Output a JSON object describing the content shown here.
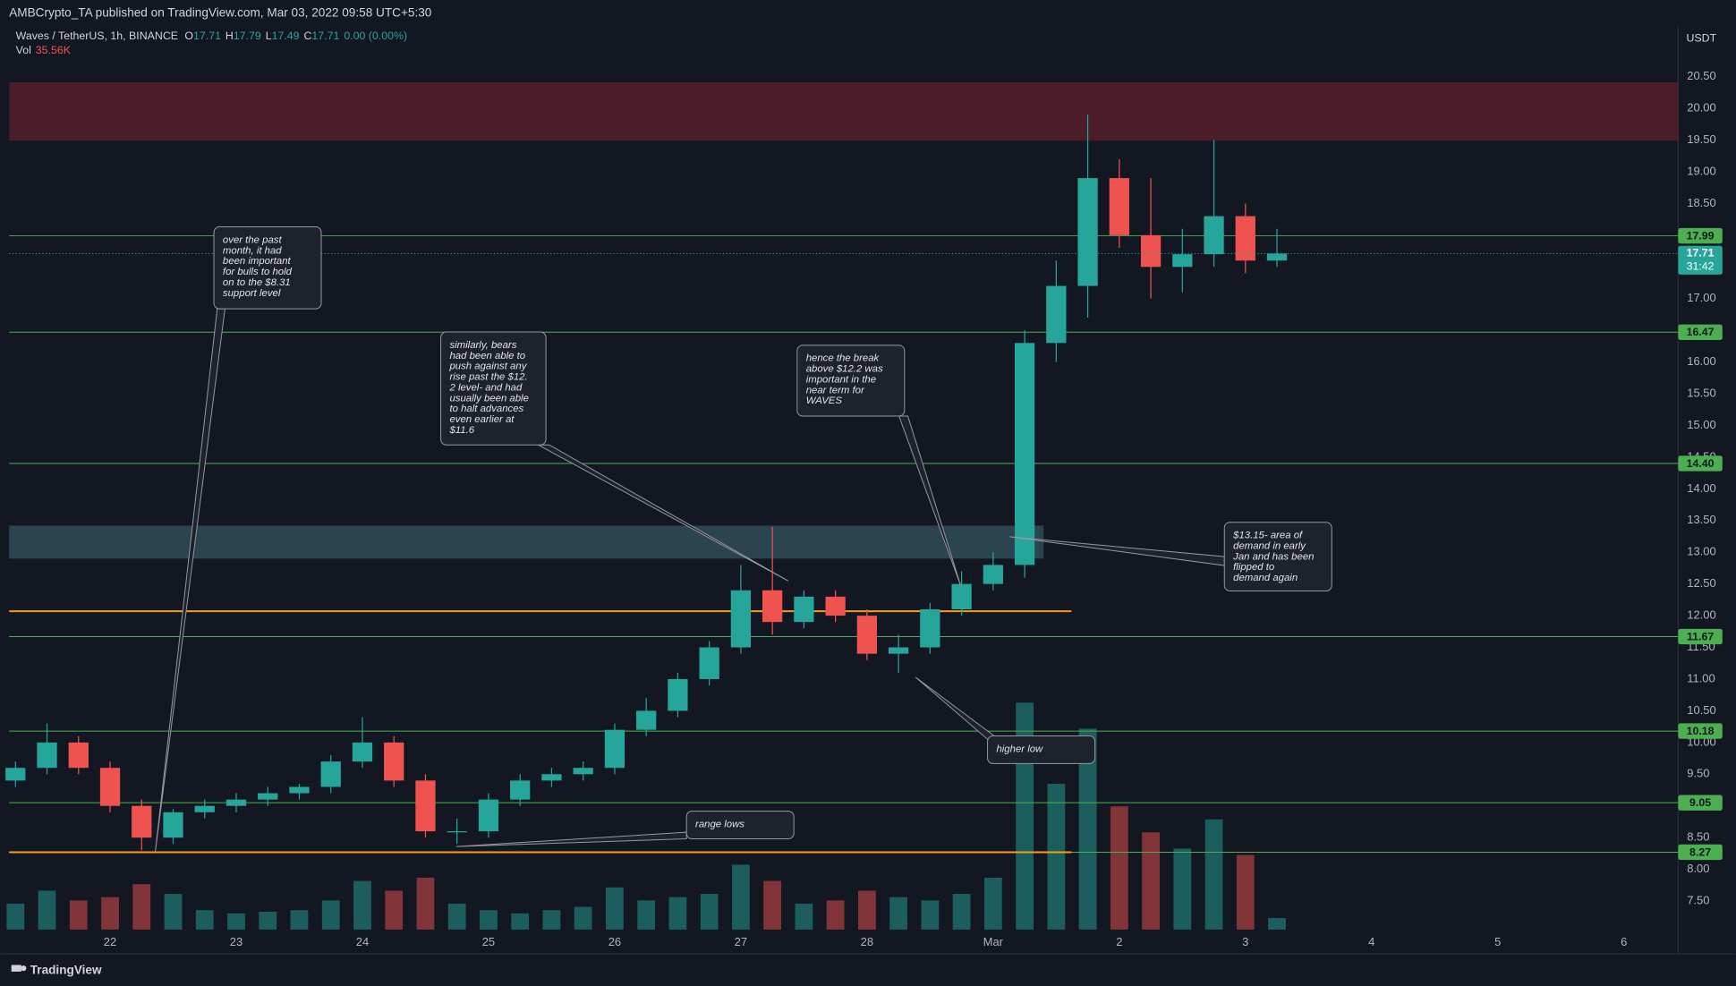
{
  "publisher": "AMBCrypto_TA published on TradingView.com, Mar 03, 2022 09:58 UTC+5:30",
  "footer": "TradingView",
  "chart_data": {
    "type": "candlestick",
    "title": "Waves / TetherUS, 1h, BINANCE",
    "ohlc_legend": [
      {
        "label": "O",
        "value": 17.71
      },
      {
        "label": "H",
        "value": 17.79
      },
      {
        "label": "L",
        "value": 17.49
      },
      {
        "label": "C",
        "value": 17.71
      }
    ],
    "change": "0.00 (0.00%)",
    "vol_label": "Vol",
    "vol_value": "35.56K",
    "currency": "USDT",
    "up_color": "#26a69a",
    "down_color": "#ef5350",
    "x": [
      21.25,
      21.5,
      21.75,
      22,
      22.25,
      22.5,
      22.75,
      23,
      23.25,
      23.5,
      23.75,
      24,
      24.25,
      24.5,
      24.75,
      25,
      25.25,
      25.5,
      25.75,
      26,
      26.25,
      26.5,
      26.75,
      27,
      27.25,
      27.5,
      27.75,
      28,
      28.25,
      28.5,
      28.75,
      29,
      29.25,
      29.5,
      29.75,
      30,
      30.25,
      30.5,
      30.75,
      31,
      31.25
    ],
    "open": [
      9.4,
      9.6,
      10.0,
      9.6,
      9.0,
      8.5,
      8.9,
      9.0,
      9.1,
      9.2,
      9.3,
      9.7,
      10.0,
      9.4,
      8.6,
      8.6,
      9.1,
      9.4,
      9.5,
      9.6,
      10.2,
      10.5,
      11.0,
      11.5,
      12.4,
      11.9,
      12.3,
      12.0,
      11.4,
      11.5,
      12.1,
      12.5,
      12.8,
      16.3,
      17.2,
      18.9,
      18.0,
      17.5,
      17.7,
      18.3,
      17.6
    ],
    "high": [
      9.7,
      10.3,
      10.1,
      9.7,
      9.1,
      8.95,
      9.1,
      9.2,
      9.3,
      9.35,
      9.8,
      10.4,
      10.1,
      9.5,
      8.8,
      9.2,
      9.5,
      9.6,
      9.7,
      10.3,
      10.7,
      11.1,
      11.6,
      12.8,
      13.4,
      12.4,
      12.4,
      12.1,
      11.7,
      12.2,
      12.7,
      13.0,
      16.5,
      17.6,
      19.9,
      19.2,
      18.9,
      18.1,
      19.5,
      18.5,
      18.1
    ],
    "low": [
      9.3,
      9.5,
      9.5,
      8.9,
      8.3,
      8.4,
      8.8,
      8.9,
      9.0,
      9.1,
      9.2,
      9.6,
      9.3,
      8.5,
      8.4,
      8.5,
      9.0,
      9.3,
      9.4,
      9.5,
      10.1,
      10.4,
      10.9,
      11.4,
      11.7,
      11.8,
      11.9,
      11.3,
      11.1,
      11.4,
      12.0,
      12.4,
      12.6,
      16.0,
      16.7,
      17.8,
      17.0,
      17.1,
      17.5,
      17.4,
      17.5
    ],
    "close": [
      9.6,
      10.0,
      9.6,
      9.0,
      8.5,
      8.9,
      9.0,
      9.1,
      9.2,
      9.3,
      9.7,
      10.0,
      9.4,
      8.6,
      8.6,
      9.1,
      9.4,
      9.5,
      9.6,
      10.2,
      10.5,
      11.0,
      11.5,
      12.4,
      11.9,
      12.3,
      12.0,
      11.4,
      11.5,
      12.1,
      12.5,
      12.8,
      16.3,
      17.2,
      18.9,
      18.0,
      17.5,
      17.7,
      18.3,
      17.6,
      17.71
    ],
    "volume": [
      80,
      120,
      90,
      100,
      140,
      110,
      60,
      50,
      55,
      60,
      90,
      150,
      120,
      160,
      80,
      60,
      50,
      60,
      70,
      130,
      90,
      100,
      110,
      200,
      150,
      80,
      90,
      120,
      100,
      90,
      110,
      160,
      700,
      450,
      620,
      380,
      300,
      250,
      340,
      230,
      35.56
    ],
    "xlim": [
      21.2,
      34.43
    ],
    "ylim": [
      7.05,
      21.29
    ],
    "xticks": [
      22,
      23,
      24,
      25,
      26,
      27,
      28,
      {
        "value": 29,
        "label": "Mar"
      },
      {
        "value": 30,
        "label": "2"
      },
      {
        "value": 31,
        "label": "3"
      },
      {
        "value": 32,
        "label": "4"
      },
      {
        "value": 33,
        "label": "5"
      },
      {
        "value": 34,
        "label": "6"
      }
    ],
    "yticks": [
      {
        "value": 7.5,
        "label": "7.50"
      },
      {
        "value": 8,
        "label": "8.00"
      },
      {
        "value": 8.5,
        "label": "8.50"
      },
      {
        "value": 9.5,
        "label": "9.50"
      },
      {
        "value": 10,
        "label": "10.00"
      },
      {
        "value": 10.5,
        "label": "10.50"
      },
      {
        "value": 11,
        "label": "11.00"
      },
      {
        "value": 11.5,
        "label": "11.50"
      },
      {
        "value": 12,
        "label": "12.00"
      },
      {
        "value": 12.5,
        "label": "12.50"
      },
      {
        "value": 13,
        "label": "13.00"
      },
      {
        "value": 13.5,
        "label": "13.50"
      },
      {
        "value": 14,
        "label": "14.00"
      },
      {
        "value": 14.5,
        "label": "14.50"
      },
      {
        "value": 15,
        "label": "15.00"
      },
      {
        "value": 15.5,
        "label": "15.50"
      },
      {
        "value": 16,
        "label": "16.00"
      },
      {
        "value": 17,
        "label": "17.00"
      },
      {
        "value": 18.5,
        "label": "18.50"
      },
      {
        "value": 19,
        "label": "19.00"
      },
      {
        "value": 19.5,
        "label": "19.50"
      },
      {
        "value": 20,
        "label": "20.00"
      },
      {
        "value": 20.5,
        "label": "20.50"
      }
    ],
    "levels": [
      17.99,
      16.47,
      {
        "value": 14.4,
        "label": "14.40"
      },
      11.67,
      10.18,
      9.05,
      8.27
    ],
    "level_color": "#4caf50",
    "orange_lines": [
      {
        "value": 12.07,
        "x_end": 29.62
      },
      {
        "value": 8.27,
        "x_end": 29.62
      }
    ],
    "orange_color": "#f59c1a",
    "zones": [
      {
        "y": [
          19.49,
          20.41
        ],
        "color": "rgba(178,40,51,0.35)"
      },
      {
        "y": [
          12.9,
          13.42
        ],
        "x_end": 29.4,
        "color": "rgba(80,140,150,0.4)"
      }
    ],
    "last_price": 17.71,
    "countdown": "31:42"
  },
  "annotations": [
    {
      "lines": [
        "over the past",
        "month, it had",
        "been important",
        "for bulls to hold",
        "on to the $8.31",
        "support level"
      ]
    },
    {
      "lines": [
        "similarly, bears",
        "had been able to",
        "push against any",
        "rise past the $12.",
        "2 level- and had",
        "usually been able",
        "to halt advances",
        "even earlier at",
        "$11.6"
      ]
    },
    {
      "lines": [
        "hence the break",
        "above $12.2 was",
        "important in the",
        "near term for",
        "WAVES"
      ]
    },
    {
      "lines": [
        "$13.15- area of",
        "demand in early",
        "Jan and has been",
        "flipped to",
        "demand again"
      ]
    },
    {
      "lines": [
        "higher low"
      ]
    },
    {
      "lines": [
        "range lows"
      ]
    }
  ]
}
